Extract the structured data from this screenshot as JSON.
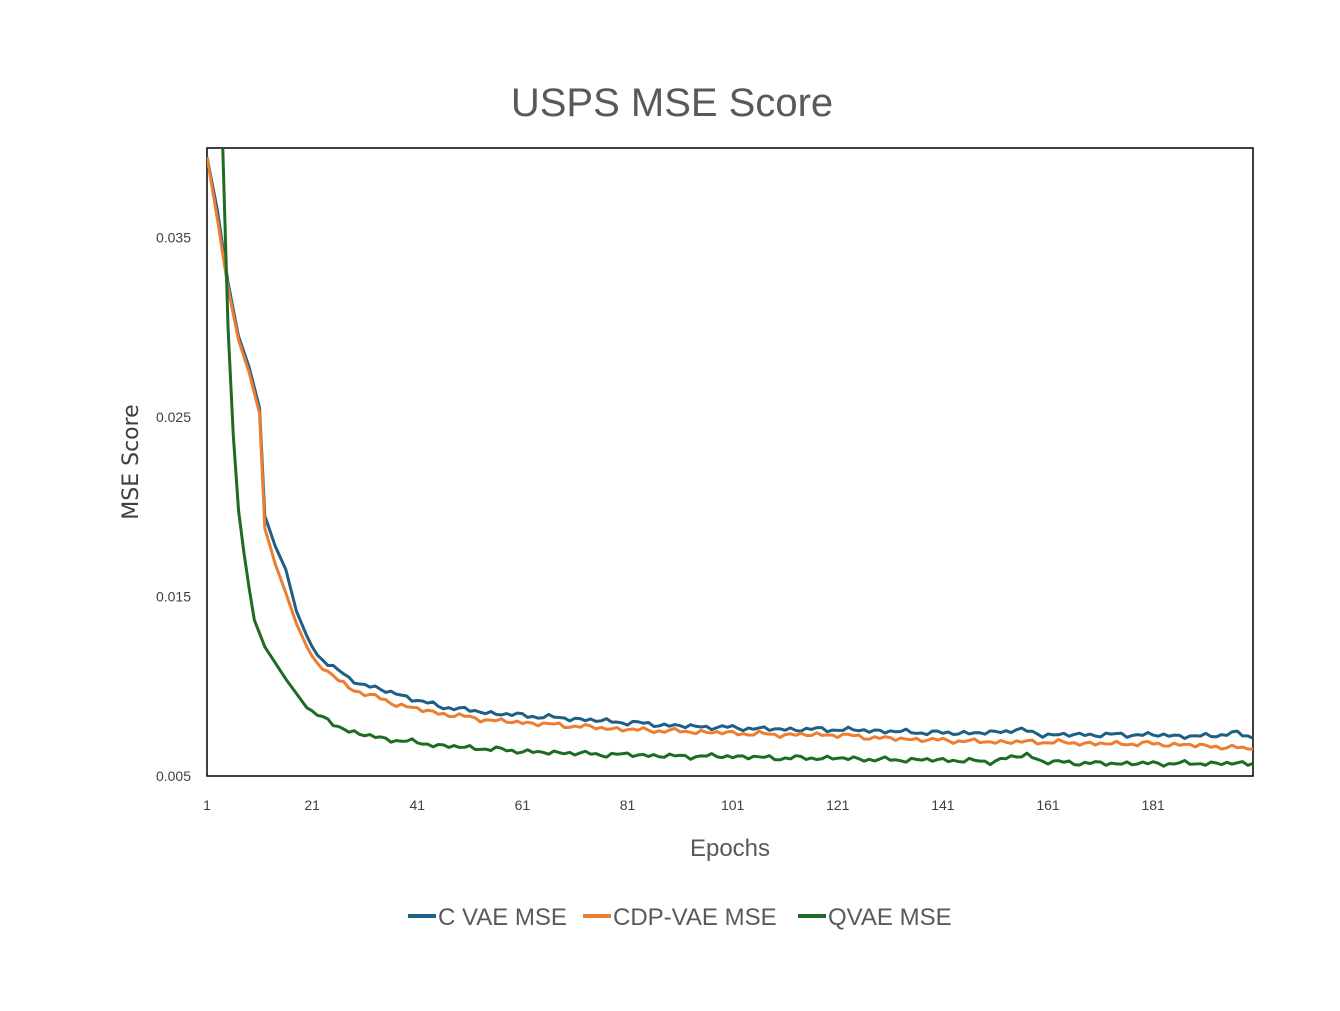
{
  "chart_data": {
    "type": "line",
    "title": "USPS MSE  Score",
    "xlabel": "Epochs",
    "ylabel": "MSE Score",
    "xlim": [
      1,
      200
    ],
    "ylim": [
      0.005,
      0.04
    ],
    "x_ticks": [
      "1",
      "21",
      "41",
      "61",
      "81",
      "101",
      "121",
      "141",
      "161",
      "181"
    ],
    "y_ticks": [
      "0.035",
      "0.025",
      "0.015",
      "0.005"
    ],
    "legend_position": "bottom",
    "grid": false,
    "series": [
      {
        "name": "C VAE MSE",
        "color": "#1f5f86",
        "points": [
          [
            1,
            0.0395
          ],
          [
            3,
            0.0365
          ],
          [
            5,
            0.0325
          ],
          [
            7,
            0.0295
          ],
          [
            9,
            0.0278
          ],
          [
            11,
            0.0255
          ],
          [
            12,
            0.0195
          ],
          [
            14,
            0.0178
          ],
          [
            16,
            0.0165
          ],
          [
            18,
            0.0142
          ],
          [
            20,
            0.0128
          ],
          [
            22,
            0.0117
          ],
          [
            25,
            0.0111
          ],
          [
            28,
            0.0104
          ],
          [
            31,
            0.0101
          ],
          [
            34,
            0.0098
          ],
          [
            37,
            0.0096
          ],
          [
            40,
            0.0093
          ],
          [
            45,
            0.0089
          ],
          [
            50,
            0.0087
          ],
          [
            55,
            0.0085
          ],
          [
            60,
            0.0084
          ],
          [
            65,
            0.0083
          ],
          [
            70,
            0.0082
          ],
          [
            75,
            0.0081
          ],
          [
            80,
            0.008
          ],
          [
            90,
            0.0078
          ],
          [
            100,
            0.0077
          ],
          [
            110,
            0.0076
          ],
          [
            120,
            0.0076
          ],
          [
            130,
            0.0075
          ],
          [
            140,
            0.0074
          ],
          [
            150,
            0.0074
          ],
          [
            155,
            0.0076
          ],
          [
            160,
            0.0073
          ],
          [
            170,
            0.0073
          ],
          [
            180,
            0.0073
          ],
          [
            190,
            0.0072
          ],
          [
            197,
            0.0074
          ],
          [
            200,
            0.0071
          ]
        ]
      },
      {
        "name": "CDP-VAE MSE",
        "color": "#ed7d31",
        "points": [
          [
            1,
            0.0395
          ],
          [
            3,
            0.036
          ],
          [
            5,
            0.0322
          ],
          [
            7,
            0.0293
          ],
          [
            9,
            0.0275
          ],
          [
            11,
            0.0252
          ],
          [
            12,
            0.0188
          ],
          [
            14,
            0.0168
          ],
          [
            16,
            0.0152
          ],
          [
            18,
            0.0135
          ],
          [
            20,
            0.0122
          ],
          [
            22,
            0.0112
          ],
          [
            25,
            0.0106
          ],
          [
            28,
            0.0099
          ],
          [
            31,
            0.0096
          ],
          [
            34,
            0.0093
          ],
          [
            37,
            0.009
          ],
          [
            40,
            0.0088
          ],
          [
            45,
            0.0085
          ],
          [
            50,
            0.0083
          ],
          [
            55,
            0.0081
          ],
          [
            60,
            0.008
          ],
          [
            65,
            0.0079
          ],
          [
            70,
            0.0078
          ],
          [
            75,
            0.0077
          ],
          [
            80,
            0.0076
          ],
          [
            90,
            0.0075
          ],
          [
            100,
            0.0074
          ],
          [
            110,
            0.0073
          ],
          [
            120,
            0.0073
          ],
          [
            130,
            0.0071
          ],
          [
            140,
            0.007
          ],
          [
            150,
            0.0069
          ],
          [
            160,
            0.0069
          ],
          [
            170,
            0.0068
          ],
          [
            180,
            0.0068
          ],
          [
            190,
            0.0067
          ],
          [
            200,
            0.0065
          ]
        ]
      },
      {
        "name": "QVAE MSE",
        "color": "#1e6b24",
        "points": [
          [
            4,
            0.04
          ],
          [
            5,
            0.03
          ],
          [
            6,
            0.024
          ],
          [
            7,
            0.0198
          ],
          [
            8,
            0.0175
          ],
          [
            9,
            0.0155
          ],
          [
            10,
            0.0137
          ],
          [
            12,
            0.0122
          ],
          [
            14,
            0.0113
          ],
          [
            16,
            0.0104
          ],
          [
            18,
            0.0096
          ],
          [
            20,
            0.0088
          ],
          [
            22,
            0.0084
          ],
          [
            25,
            0.0079
          ],
          [
            28,
            0.0075
          ],
          [
            31,
            0.0073
          ],
          [
            34,
            0.0071
          ],
          [
            37,
            0.007
          ],
          [
            40,
            0.0069
          ],
          [
            45,
            0.0067
          ],
          [
            50,
            0.0066
          ],
          [
            55,
            0.0065
          ],
          [
            60,
            0.0064
          ],
          [
            65,
            0.0063
          ],
          [
            70,
            0.0063
          ],
          [
            75,
            0.0062
          ],
          [
            80,
            0.0062
          ],
          [
            90,
            0.0061
          ],
          [
            100,
            0.0061
          ],
          [
            110,
            0.006
          ],
          [
            120,
            0.006
          ],
          [
            130,
            0.0059
          ],
          [
            140,
            0.0059
          ],
          [
            150,
            0.0058
          ],
          [
            157,
            0.0062
          ],
          [
            160,
            0.0058
          ],
          [
            170,
            0.0057
          ],
          [
            180,
            0.0057
          ],
          [
            190,
            0.0057
          ],
          [
            200,
            0.0057
          ]
        ]
      }
    ]
  }
}
